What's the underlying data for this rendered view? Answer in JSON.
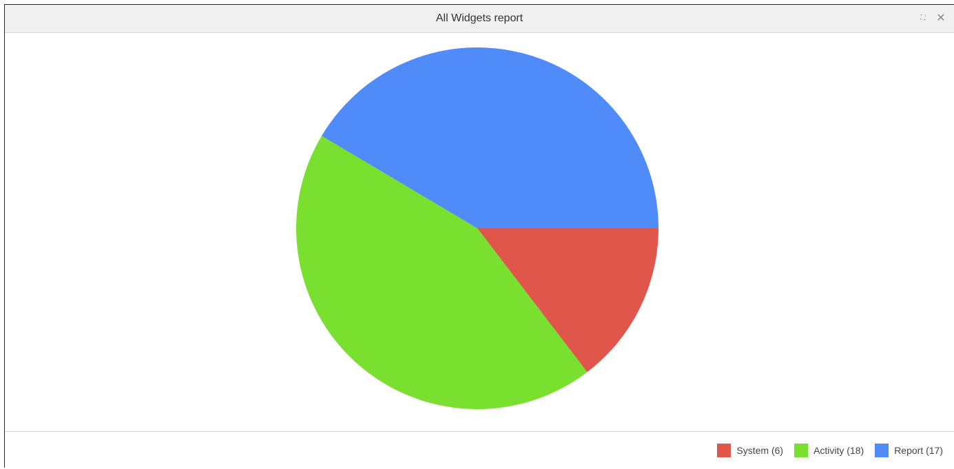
{
  "panel": {
    "title": "All Widgets report",
    "maximize_icon": "expand-icon",
    "close_icon": "close-icon",
    "maximize_glyph": "⛶",
    "close_glyph": "✕"
  },
  "chart_data": {
    "type": "pie",
    "categories": [
      "System",
      "Activity",
      "Report"
    ],
    "values": [
      6,
      18,
      17
    ],
    "colors": [
      "#e0564a",
      "#7ae02f",
      "#4f8bf9"
    ],
    "legend_labels": [
      "System (6)",
      "Activity (18)",
      "Report (17)"
    ],
    "legend": "bottom-right"
  }
}
